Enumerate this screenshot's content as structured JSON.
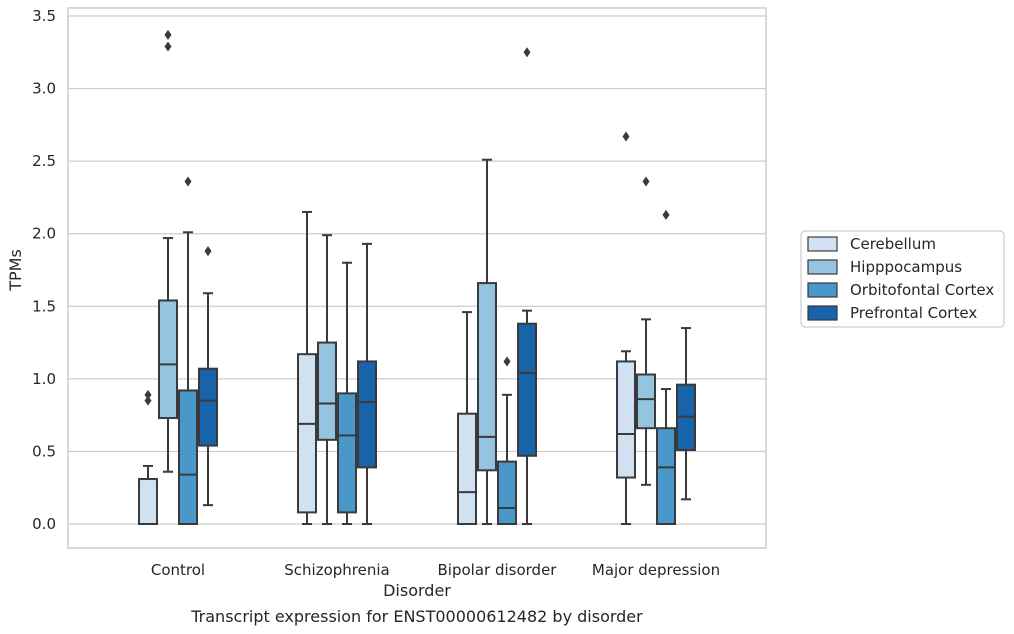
{
  "chart_data": {
    "type": "boxplot",
    "title": "",
    "xlabel": "Disorder",
    "ylabel": "TPMs",
    "caption": "Transcript expression for ENST00000612482 by disorder",
    "ylim": [
      -0.16,
      3.56
    ],
    "yticks": [
      "0.0",
      "0.5",
      "1.0",
      "1.5",
      "2.0",
      "2.5",
      "3.0",
      "3.5"
    ],
    "ytick_values": [
      0,
      0.5,
      1.0,
      1.5,
      2.0,
      2.5,
      3.0,
      3.5
    ],
    "grid": "horizontal",
    "legend_position": "right",
    "categories": [
      "Control",
      "Schizophrenia",
      "Bipolar disorder",
      "Major depression"
    ],
    "series": [
      {
        "name": "Cerebellum",
        "color": "#d0e1f2",
        "boxes": [
          {
            "min": 0.0,
            "q1": 0.0,
            "median": 0.0,
            "q3": 0.31,
            "max": 0.4,
            "outliers": [
              0.85,
              0.89
            ]
          },
          {
            "min": 0.0,
            "q1": 0.08,
            "median": 0.69,
            "q3": 1.17,
            "max": 2.15,
            "outliers": []
          },
          {
            "min": 0.0,
            "q1": 0.0,
            "median": 0.22,
            "q3": 0.76,
            "max": 1.46,
            "outliers": []
          },
          {
            "min": 0.0,
            "q1": 0.32,
            "median": 0.62,
            "q3": 1.12,
            "max": 1.19,
            "outliers": [
              2.67
            ]
          }
        ]
      },
      {
        "name": "Hipppocampus",
        "color": "#94c4df",
        "boxes": [
          {
            "min": 0.36,
            "q1": 0.73,
            "median": 1.1,
            "q3": 1.54,
            "max": 1.97,
            "outliers": [
              3.29,
              3.37
            ]
          },
          {
            "min": 0.0,
            "q1": 0.58,
            "median": 0.83,
            "q3": 1.25,
            "max": 1.99,
            "outliers": []
          },
          {
            "min": 0.0,
            "q1": 0.37,
            "median": 0.6,
            "q3": 1.66,
            "max": 2.51,
            "outliers": []
          },
          {
            "min": 0.27,
            "q1": 0.66,
            "median": 0.86,
            "q3": 1.03,
            "max": 1.41,
            "outliers": [
              2.36
            ]
          }
        ]
      },
      {
        "name": "Orbitofontal Cortex",
        "color": "#4a98c9",
        "boxes": [
          {
            "min": 0.0,
            "q1": 0.0,
            "median": 0.34,
            "q3": 0.92,
            "max": 2.01,
            "outliers": [
              2.36
            ]
          },
          {
            "min": 0.0,
            "q1": 0.08,
            "median": 0.61,
            "q3": 0.9,
            "max": 1.8,
            "outliers": []
          },
          {
            "min": 0.0,
            "q1": 0.0,
            "median": 0.11,
            "q3": 0.43,
            "max": 0.89,
            "outliers": [
              1.12
            ]
          },
          {
            "min": 0.0,
            "q1": 0.0,
            "median": 0.39,
            "q3": 0.66,
            "max": 0.93,
            "outliers": [
              2.13
            ]
          }
        ]
      },
      {
        "name": "Prefrontal Cortex",
        "color": "#1764ab",
        "boxes": [
          {
            "min": 0.13,
            "q1": 0.54,
            "median": 0.85,
            "q3": 1.07,
            "max": 1.59,
            "outliers": [
              1.88
            ]
          },
          {
            "min": 0.0,
            "q1": 0.39,
            "median": 0.84,
            "q3": 1.12,
            "max": 1.93,
            "outliers": []
          },
          {
            "min": 0.0,
            "q1": 0.47,
            "median": 1.04,
            "q3": 1.38,
            "max": 1.47,
            "outliers": [
              3.25
            ]
          },
          {
            "min": 0.17,
            "q1": 0.51,
            "median": 0.74,
            "q3": 0.96,
            "max": 1.35,
            "outliers": []
          }
        ]
      }
    ]
  }
}
